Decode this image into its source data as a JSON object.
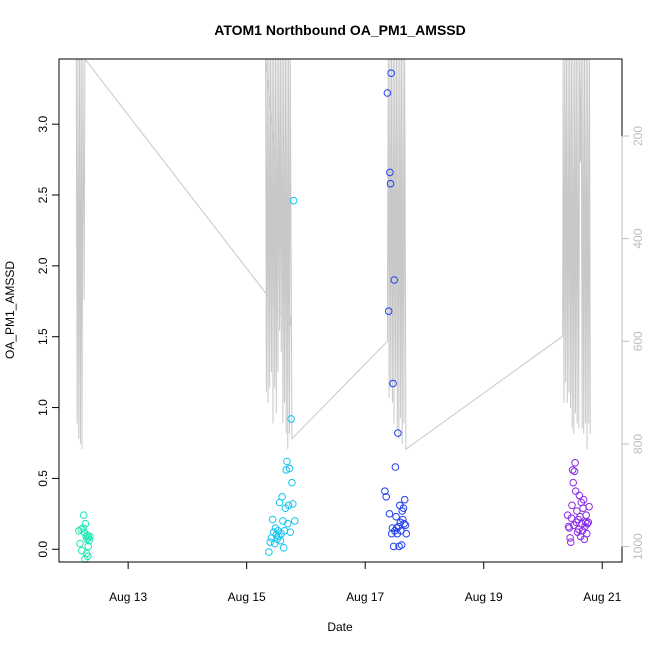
{
  "chart_data": {
    "type": "scatter",
    "title": "ATOM1 Northbound OA_PM1_AMSSD",
    "xlabel": "Date",
    "ylabel": "OA_PM1_AMSSD",
    "x_axis": {
      "type": "date",
      "range": [
        "2023-08-11T20:00",
        "2023-08-21T08:00"
      ],
      "ticks": [
        {
          "value": "2023-08-13",
          "label": "Aug 13"
        },
        {
          "value": "2023-08-15",
          "label": "Aug 15"
        },
        {
          "value": "2023-08-17",
          "label": "Aug 17"
        },
        {
          "value": "2023-08-19",
          "label": "Aug 19"
        },
        {
          "value": "2023-08-21",
          "label": "Aug 21"
        }
      ]
    },
    "y_axis": {
      "range": [
        -0.09,
        3.46
      ],
      "ticks": [
        0.0,
        0.5,
        1.0,
        1.5,
        2.0,
        2.5,
        3.0
      ],
      "tick_labels": [
        "0.0",
        "0.5",
        "1.0",
        "1.5",
        "2.0",
        "2.5",
        "3.0"
      ]
    },
    "y2_axis": {
      "reversed": true,
      "range": [
        50,
        1030
      ],
      "ticks": [
        200,
        400,
        600,
        800,
        1000
      ],
      "tick_labels": [
        "200",
        "400",
        "600",
        "800",
        "1000"
      ],
      "color": "#bdbdbd"
    },
    "grid": false,
    "legend": "none",
    "series": [
      {
        "color": "#1fe8b4",
        "points": [
          [
            "2023-08-12T04:00",
            0.13
          ],
          [
            "2023-08-12T04:30",
            0.04
          ],
          [
            "2023-08-12T05:00",
            0.14
          ],
          [
            "2023-08-12T05:15",
            -0.01
          ],
          [
            "2023-08-12T05:45",
            0.15
          ],
          [
            "2023-08-12T06:00",
            0.24
          ],
          [
            "2023-08-12T06:15",
            0.12
          ],
          [
            "2023-08-12T06:30",
            -0.07
          ],
          [
            "2023-08-12T06:45",
            0.18
          ],
          [
            "2023-08-12T07:00",
            0.09
          ],
          [
            "2023-08-12T07:10",
            -0.03
          ],
          [
            "2023-08-12T07:20",
            0.07
          ],
          [
            "2023-08-12T07:30",
            0.1
          ],
          [
            "2023-08-12T07:40",
            -0.05
          ],
          [
            "2023-08-12T07:50",
            0.02
          ],
          [
            "2023-08-12T08:00",
            0.08
          ],
          [
            "2023-08-12T08:15",
            0.06
          ],
          [
            "2023-08-12T08:30",
            0.09
          ]
        ]
      },
      {
        "color": "#14c4f0",
        "points": [
          [
            "2023-08-15T09:00",
            -0.02
          ],
          [
            "2023-08-15T09:30",
            0.05
          ],
          [
            "2023-08-15T10:00",
            0.08
          ],
          [
            "2023-08-15T10:30",
            0.21
          ],
          [
            "2023-08-15T11:00",
            0.12
          ],
          [
            "2023-08-15T11:20",
            0.04
          ],
          [
            "2023-08-15T11:40",
            0.15
          ],
          [
            "2023-08-15T12:00",
            0.1
          ],
          [
            "2023-08-15T12:20",
            0.07
          ],
          [
            "2023-08-15T12:40",
            0.13
          ],
          [
            "2023-08-15T13:00",
            0.09
          ],
          [
            "2023-08-15T13:20",
            0.33
          ],
          [
            "2023-08-15T13:40",
            0.06
          ],
          [
            "2023-08-15T14:00",
            0.11
          ],
          [
            "2023-08-15T14:20",
            0.37
          ],
          [
            "2023-08-15T14:40",
            0.2
          ],
          [
            "2023-08-15T15:00",
            0.01
          ],
          [
            "2023-08-15T15:20",
            0.13
          ],
          [
            "2023-08-15T15:40",
            0.29
          ],
          [
            "2023-08-15T16:00",
            0.56
          ],
          [
            "2023-08-15T16:20",
            0.62
          ],
          [
            "2023-08-15T16:40",
            0.18
          ],
          [
            "2023-08-15T17:00",
            0.31
          ],
          [
            "2023-08-15T17:20",
            0.57
          ],
          [
            "2023-08-15T17:40",
            0.12
          ],
          [
            "2023-08-15T18:00",
            0.92
          ],
          [
            "2023-08-15T18:20",
            0.47
          ],
          [
            "2023-08-15T18:40",
            0.32
          ],
          [
            "2023-08-15T19:00",
            2.46
          ],
          [
            "2023-08-15T19:30",
            0.2
          ]
        ]
      },
      {
        "color": "#1f3ff0",
        "points": [
          [
            "2023-08-17T08:00",
            0.41
          ],
          [
            "2023-08-17T08:30",
            0.37
          ],
          [
            "2023-08-17T09:00",
            3.22
          ],
          [
            "2023-08-17T09:30",
            1.68
          ],
          [
            "2023-08-17T09:50",
            0.25
          ],
          [
            "2023-08-17T10:00",
            2.66
          ],
          [
            "2023-08-17T10:15",
            2.58
          ],
          [
            "2023-08-17T10:30",
            3.36
          ],
          [
            "2023-08-17T10:45",
            0.11
          ],
          [
            "2023-08-17T11:00",
            0.15
          ],
          [
            "2023-08-17T11:15",
            1.17
          ],
          [
            "2023-08-17T11:30",
            0.02
          ],
          [
            "2023-08-17T11:45",
            1.9
          ],
          [
            "2023-08-17T12:00",
            0.13
          ],
          [
            "2023-08-17T12:15",
            0.58
          ],
          [
            "2023-08-17T12:30",
            0.23
          ],
          [
            "2023-08-17T12:45",
            0.15
          ],
          [
            "2023-08-17T13:00",
            0.11
          ],
          [
            "2023-08-17T13:15",
            0.82
          ],
          [
            "2023-08-17T13:30",
            0.16
          ],
          [
            "2023-08-17T13:45",
            0.02
          ],
          [
            "2023-08-17T14:00",
            0.31
          ],
          [
            "2023-08-17T14:15",
            0.19
          ],
          [
            "2023-08-17T14:30",
            0.13
          ],
          [
            "2023-08-17T14:45",
            0.03
          ],
          [
            "2023-08-17T15:00",
            0.27
          ],
          [
            "2023-08-17T15:15",
            0.21
          ],
          [
            "2023-08-17T15:30",
            0.29
          ],
          [
            "2023-08-17T15:45",
            0.18
          ],
          [
            "2023-08-17T16:00",
            0.35
          ],
          [
            "2023-08-17T16:20",
            0.17
          ],
          [
            "2023-08-17T16:40",
            0.11
          ]
        ]
      },
      {
        "color": "#8a2be8",
        "points": [
          [
            "2023-08-20T10:00",
            0.24
          ],
          [
            "2023-08-20T10:20",
            0.16
          ],
          [
            "2023-08-20T10:40",
            0.15
          ],
          [
            "2023-08-20T11:00",
            0.08
          ],
          [
            "2023-08-20T11:15",
            0.05
          ],
          [
            "2023-08-20T11:30",
            0.22
          ],
          [
            "2023-08-20T11:45",
            0.31
          ],
          [
            "2023-08-20T12:00",
            0.56
          ],
          [
            "2023-08-20T12:15",
            0.47
          ],
          [
            "2023-08-20T12:30",
            0.17
          ],
          [
            "2023-08-20T12:45",
            0.55
          ],
          [
            "2023-08-20T13:00",
            0.61
          ],
          [
            "2023-08-20T13:15",
            0.41
          ],
          [
            "2023-08-20T13:30",
            0.19
          ],
          [
            "2023-08-20T13:45",
            0.27
          ],
          [
            "2023-08-20T14:00",
            0.12
          ],
          [
            "2023-08-20T14:15",
            0.21
          ],
          [
            "2023-08-20T14:30",
            0.14
          ],
          [
            "2023-08-20T14:45",
            0.38
          ],
          [
            "2023-08-20T15:00",
            0.23
          ],
          [
            "2023-08-20T15:15",
            0.09
          ],
          [
            "2023-08-20T15:30",
            0.33
          ],
          [
            "2023-08-20T15:45",
            0.18
          ],
          [
            "2023-08-20T16:00",
            0.13
          ],
          [
            "2023-08-20T16:15",
            0.29
          ],
          [
            "2023-08-20T16:30",
            0.35
          ],
          [
            "2023-08-20T16:45",
            0.07
          ],
          [
            "2023-08-20T17:00",
            0.16
          ],
          [
            "2023-08-20T17:15",
            0.19
          ],
          [
            "2023-08-20T17:30",
            0.24
          ],
          [
            "2023-08-20T17:45",
            0.11
          ],
          [
            "2023-08-20T18:00",
            0.18
          ],
          [
            "2023-08-20T18:20",
            0.19
          ],
          [
            "2023-08-20T18:40",
            0.3
          ]
        ]
      }
    ],
    "secondary_series": {
      "axis": "y2",
      "type": "line",
      "color": "#c8c8c8",
      "points": [
        [
          "2023-08-12T03:00",
          50
        ],
        [
          "2023-08-12T03:20",
          760
        ],
        [
          "2023-08-12T03:40",
          50
        ],
        [
          "2023-08-12T04:00",
          790
        ],
        [
          "2023-08-12T04:20",
          50
        ],
        [
          "2023-08-12T04:40",
          800
        ],
        [
          "2023-08-12T05:00",
          50
        ],
        [
          "2023-08-12T05:20",
          810
        ],
        [
          "2023-08-12T05:40",
          50
        ],
        [
          "2023-08-12T06:10",
          520
        ],
        [
          "2023-08-12T06:30",
          50
        ],
        [
          "2023-08-15T18:00",
          570
        ],
        [
          "2023-08-15T07:40",
          50
        ],
        [
          "2023-08-15T08:00",
          700
        ],
        [
          "2023-08-15T08:20",
          50
        ],
        [
          "2023-08-15T08:40",
          720
        ],
        [
          "2023-08-15T09:00",
          50
        ],
        [
          "2023-08-15T09:20",
          690
        ],
        [
          "2023-08-15T09:40",
          50
        ],
        [
          "2023-08-15T10:00",
          660
        ],
        [
          "2023-08-15T10:20",
          50
        ],
        [
          "2023-08-15T10:40",
          760
        ],
        [
          "2023-08-15T11:00",
          50
        ],
        [
          "2023-08-15T11:20",
          690
        ],
        [
          "2023-08-15T11:40",
          50
        ],
        [
          "2023-08-15T12:00",
          740
        ],
        [
          "2023-08-15T12:20",
          50
        ],
        [
          "2023-08-15T12:40",
          660
        ],
        [
          "2023-08-15T13:00",
          50
        ],
        [
          "2023-08-15T13:20",
          580
        ],
        [
          "2023-08-15T13:40",
          50
        ],
        [
          "2023-08-15T14:00",
          620
        ],
        [
          "2023-08-15T14:20",
          50
        ],
        [
          "2023-08-15T14:40",
          760
        ],
        [
          "2023-08-15T15:00",
          50
        ],
        [
          "2023-08-15T15:20",
          720
        ],
        [
          "2023-08-15T15:40",
          50
        ],
        [
          "2023-08-15T16:00",
          780
        ],
        [
          "2023-08-15T16:20",
          50
        ],
        [
          "2023-08-15T16:40",
          810
        ],
        [
          "2023-08-15T17:00",
          50
        ],
        [
          "2023-08-15T17:20",
          780
        ],
        [
          "2023-08-15T17:40",
          50
        ],
        [
          "2023-08-15T18:20",
          790
        ],
        [
          "2023-08-17T09:00",
          600
        ],
        [
          "2023-08-17T09:20",
          50
        ],
        [
          "2023-08-17T09:40",
          710
        ],
        [
          "2023-08-17T10:00",
          50
        ],
        [
          "2023-08-17T10:20",
          690
        ],
        [
          "2023-08-17T10:40",
          50
        ],
        [
          "2023-08-17T11:00",
          720
        ],
        [
          "2023-08-17T11:20",
          50
        ],
        [
          "2023-08-17T11:40",
          760
        ],
        [
          "2023-08-17T12:00",
          50
        ],
        [
          "2023-08-17T12:20",
          680
        ],
        [
          "2023-08-17T12:40",
          50
        ],
        [
          "2023-08-17T13:00",
          770
        ],
        [
          "2023-08-17T13:20",
          50
        ],
        [
          "2023-08-17T13:40",
          790
        ],
        [
          "2023-08-17T14:00",
          50
        ],
        [
          "2023-08-17T14:20",
          750
        ],
        [
          "2023-08-17T14:40",
          50
        ],
        [
          "2023-08-17T15:00",
          800
        ],
        [
          "2023-08-17T15:20",
          50
        ],
        [
          "2023-08-17T15:40",
          760
        ],
        [
          "2023-08-17T16:00",
          50
        ],
        [
          "2023-08-17T16:30",
          810
        ],
        [
          "2023-08-20T08:00",
          590
        ],
        [
          "2023-08-20T08:10",
          50
        ],
        [
          "2023-08-20T08:30",
          720
        ],
        [
          "2023-08-20T08:50",
          50
        ],
        [
          "2023-08-20T09:10",
          680
        ],
        [
          "2023-08-20T09:30",
          50
        ],
        [
          "2023-08-20T09:50",
          720
        ],
        [
          "2023-08-20T10:10",
          50
        ],
        [
          "2023-08-20T10:30",
          700
        ],
        [
          "2023-08-20T10:50",
          50
        ],
        [
          "2023-08-20T11:10",
          730
        ],
        [
          "2023-08-20T11:30",
          50
        ],
        [
          "2023-08-20T11:50",
          770
        ],
        [
          "2023-08-20T12:10",
          50
        ],
        [
          "2023-08-20T12:30",
          780
        ],
        [
          "2023-08-20T12:50",
          50
        ],
        [
          "2023-08-20T13:10",
          740
        ],
        [
          "2023-08-20T13:30",
          50
        ],
        [
          "2023-08-20T13:50",
          760
        ],
        [
          "2023-08-20T14:10",
          50
        ],
        [
          "2023-08-20T14:30",
          770
        ],
        [
          "2023-08-20T14:50",
          50
        ],
        [
          "2023-08-20T15:10",
          250
        ],
        [
          "2023-08-20T15:30",
          50
        ],
        [
          "2023-08-20T15:50",
          770
        ],
        [
          "2023-08-20T16:10",
          50
        ],
        [
          "2023-08-20T16:30",
          780
        ],
        [
          "2023-08-20T16:50",
          50
        ],
        [
          "2023-08-20T17:10",
          760
        ],
        [
          "2023-08-20T17:30",
          50
        ],
        [
          "2023-08-20T17:50",
          810
        ],
        [
          "2023-08-20T18:10",
          50
        ],
        [
          "2023-08-20T18:30",
          760
        ],
        [
          "2023-08-20T18:50",
          50
        ],
        [
          "2023-08-20T19:10",
          780
        ]
      ]
    }
  }
}
